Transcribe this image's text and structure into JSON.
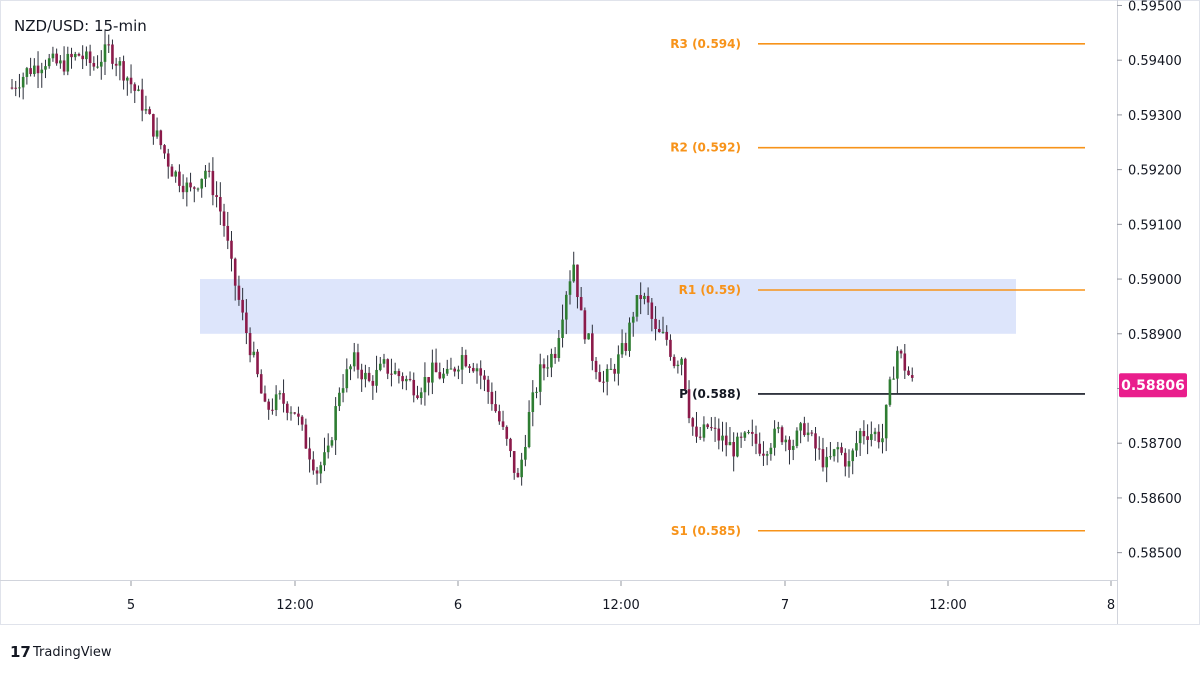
{
  "chart_data": {
    "type": "candlestick",
    "title": "NZD/USD: 15-min",
    "ylim": [
      0.5845,
      0.5951
    ],
    "y_ticks": [
      "0.59500",
      "0.59400",
      "0.59300",
      "0.59200",
      "0.59100",
      "0.59000",
      "0.58900",
      "0.58800",
      "0.58700",
      "0.58600",
      "0.58500"
    ],
    "x_ticks": [
      "5",
      "12:00",
      "6",
      "12:00",
      "7",
      "12:00",
      "8"
    ],
    "last_price": "0.58806",
    "zone": {
      "low": 0.589,
      "high": 0.59
    },
    "pivot_levels": [
      {
        "label": "R3 (0.594)",
        "value": 0.5943,
        "color": "#f7931a"
      },
      {
        "label": "R2 (0.592)",
        "value": 0.5924,
        "color": "#f7931a"
      },
      {
        "label": "R1 (0.59)",
        "value": 0.5898,
        "color": "#f7931a"
      },
      {
        "label": "P (0.588)",
        "value": 0.5879,
        "color": "#131722"
      },
      {
        "label": "S1 (0.585)",
        "value": 0.5854,
        "color": "#f7931a"
      }
    ],
    "waypoints": [
      [
        0,
        0.5935
      ],
      [
        4,
        0.5938
      ],
      [
        9,
        0.594
      ],
      [
        13,
        0.5939
      ],
      [
        18,
        0.5941
      ],
      [
        22,
        0.5939
      ],
      [
        26,
        0.5942
      ],
      [
        31,
        0.5937
      ],
      [
        35,
        0.5932
      ],
      [
        39,
        0.5926
      ],
      [
        43,
        0.592
      ],
      [
        48,
        0.5916
      ],
      [
        52,
        0.592
      ],
      [
        55,
        0.5915
      ],
      [
        57,
        0.591
      ],
      [
        59,
        0.5902
      ],
      [
        62,
        0.5893
      ],
      [
        65,
        0.5885
      ],
      [
        68,
        0.5876
      ],
      [
        72,
        0.5878
      ],
      [
        76,
        0.5876
      ],
      [
        79,
        0.587
      ],
      [
        82,
        0.5865
      ],
      [
        85,
        0.5868
      ],
      [
        88,
        0.588
      ],
      [
        92,
        0.5885
      ],
      [
        96,
        0.5881
      ],
      [
        100,
        0.5884
      ],
      [
        105,
        0.5882
      ],
      [
        109,
        0.588
      ],
      [
        113,
        0.5883
      ],
      [
        117,
        0.5882
      ],
      [
        121,
        0.5886
      ],
      [
        125,
        0.5884
      ],
      [
        129,
        0.5878
      ],
      [
        133,
        0.587
      ],
      [
        136,
        0.5863
      ],
      [
        139,
        0.5875
      ],
      [
        142,
        0.5883
      ],
      [
        146,
        0.5887
      ],
      [
        149,
        0.5898
      ],
      [
        151,
        0.5903
      ],
      [
        153,
        0.5893
      ],
      [
        156,
        0.5886
      ],
      [
        159,
        0.5881
      ],
      [
        162,
        0.5884
      ],
      [
        165,
        0.5888
      ],
      [
        167,
        0.5894
      ],
      [
        169,
        0.5897
      ],
      [
        171,
        0.5895
      ],
      [
        173,
        0.589
      ],
      [
        176,
        0.5889
      ],
      [
        178,
        0.5885
      ],
      [
        180,
        0.5886
      ],
      [
        182,
        0.5876
      ],
      [
        184,
        0.587
      ],
      [
        187,
        0.5873
      ],
      [
        190,
        0.5871
      ],
      [
        194,
        0.5869
      ],
      [
        198,
        0.5871
      ],
      [
        202,
        0.5869
      ],
      [
        206,
        0.5872
      ],
      [
        210,
        0.587
      ],
      [
        213,
        0.5873
      ],
      [
        216,
        0.5869
      ],
      [
        219,
        0.5866
      ],
      [
        222,
        0.5869
      ],
      [
        225,
        0.5866
      ],
      [
        228,
        0.5872
      ],
      [
        231,
        0.5872
      ],
      [
        234,
        0.5871
      ],
      [
        236,
        0.588
      ],
      [
        238,
        0.5887
      ],
      [
        240,
        0.5884
      ],
      [
        242,
        0.5881
      ]
    ]
  },
  "branding": {
    "logo_mark": "17",
    "logo_text": "TradingView"
  }
}
